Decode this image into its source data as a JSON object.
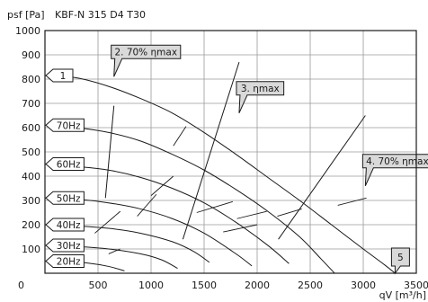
{
  "chart_data": {
    "type": "line",
    "title": "KBF-N 315 D4 T30",
    "ylabel": "psf [Pa]",
    "xlabel": "qV [m³/h]",
    "xlim": [
      0,
      3500
    ],
    "ylim": [
      0,
      1000
    ],
    "xticks": [
      0,
      500,
      1000,
      1500,
      2000,
      2500,
      3000,
      3500
    ],
    "yticks": [
      100,
      200,
      300,
      400,
      500,
      600,
      700,
      800,
      900,
      1000
    ],
    "grid": true,
    "series": [
      {
        "name": "1",
        "x": [
          0,
          300,
          600,
          900,
          1200,
          1500,
          1800,
          2100,
          2400,
          2700,
          3000,
          3200,
          3300
        ],
        "y": [
          815,
          805,
          770,
          720,
          660,
          580,
          490,
          395,
          300,
          200,
          100,
          35,
          0
        ]
      },
      {
        "name": "70Hz",
        "x": [
          0,
          300,
          600,
          900,
          1200,
          1500,
          1800,
          2100,
          2400,
          2600,
          2730
        ],
        "y": [
          610,
          600,
          580,
          545,
          490,
          425,
          345,
          255,
          150,
          60,
          0
        ]
      },
      {
        "name": "60Hz",
        "x": [
          0,
          300,
          600,
          900,
          1200,
          1500,
          1800,
          2100,
          2300
        ],
        "y": [
          450,
          440,
          425,
          395,
          350,
          290,
          210,
          115,
          40
        ]
      },
      {
        "name": "50Hz",
        "x": [
          0,
          300,
          600,
          900,
          1200,
          1500,
          1800,
          1950
        ],
        "y": [
          310,
          305,
          290,
          265,
          225,
          165,
          80,
          30
        ]
      },
      {
        "name": "40Hz",
        "x": [
          0,
          300,
          600,
          900,
          1200,
          1400,
          1550
        ],
        "y": [
          200,
          195,
          185,
          165,
          130,
          90,
          45
        ]
      },
      {
        "name": "30Hz",
        "x": [
          0,
          300,
          600,
          900,
          1100,
          1250
        ],
        "y": [
          115,
          110,
          100,
          80,
          55,
          20
        ]
      },
      {
        "name": "20Hz",
        "x": [
          0,
          200,
          400,
          600,
          750
        ],
        "y": [
          50,
          48,
          42,
          28,
          10
        ]
      },
      {
        "name": "2. 70% ηmax",
        "x": [
          570,
          650
        ],
        "y": [
          310,
          690
        ]
      },
      {
        "name": "3. ηmax",
        "x": [
          1300,
          1830
        ],
        "y": [
          140,
          870
        ]
      },
      {
        "name": "4. 70% ηmax",
        "x": [
          2200,
          3020
        ],
        "y": [
          140,
          650
        ]
      }
    ],
    "annotations": [
      {
        "text": "1",
        "x": 0,
        "y": 815
      },
      {
        "text": "2. 70% ηmax",
        "x": 650,
        "y": 810
      },
      {
        "text": "3. ηmax",
        "x": 1830,
        "y": 660
      },
      {
        "text": "4. 70% ηmax",
        "x": 3020,
        "y": 360
      },
      {
        "text": "5",
        "x": 3300,
        "y": 50
      },
      {
        "text": "70Hz",
        "x": 0,
        "y": 610
      },
      {
        "text": "60Hz",
        "x": 0,
        "y": 450
      },
      {
        "text": "50Hz",
        "x": 0,
        "y": 310
      },
      {
        "text": "40Hz",
        "x": 0,
        "y": 200
      },
      {
        "text": "30Hz",
        "x": 0,
        "y": 115
      },
      {
        "text": "20Hz",
        "x": 0,
        "y": 50
      }
    ],
    "system_lines": [
      {
        "x": [
          600,
          710
        ],
        "y": [
          80,
          100
        ]
      },
      {
        "x": [
          470,
          710
        ],
        "y": [
          165,
          255
        ]
      },
      {
        "x": [
          870,
          1050
        ],
        "y": [
          235,
          325
        ]
      },
      {
        "x": [
          1000,
          1210
        ],
        "y": [
          320,
          400
        ]
      },
      {
        "x": [
          1210,
          1330
        ],
        "y": [
          525,
          605
        ]
      },
      {
        "x": [
          1430,
          1770
        ],
        "y": [
          250,
          295
        ]
      },
      {
        "x": [
          1680,
          2000
        ],
        "y": [
          170,
          200
        ]
      },
      {
        "x": [
          1810,
          2090
        ],
        "y": [
          225,
          255
        ]
      },
      {
        "x": [
          2190,
          2420
        ],
        "y": [
          235,
          265
        ]
      },
      {
        "x": [
          2760,
          3030
        ],
        "y": [
          280,
          310
        ]
      }
    ]
  },
  "colors": {
    "curve": "#1a1a1a",
    "grid": "#9a9a9a",
    "label_fill": "#d9d9d9",
    "label_stroke": "#1a1a1a"
  }
}
